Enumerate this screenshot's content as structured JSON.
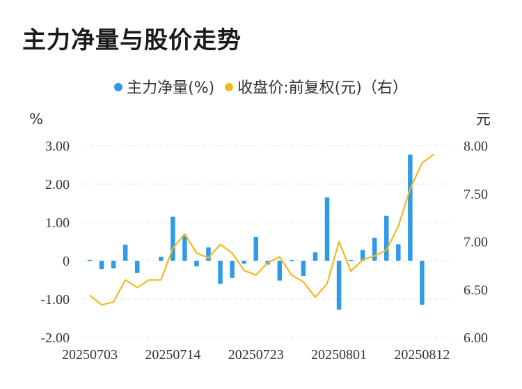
{
  "title": "主力净量与股价走势",
  "legend": {
    "left": {
      "label": "主力净量(%)",
      "color": "#2f9ae8"
    },
    "right": {
      "label": "收盘价:前复权(元)（右）",
      "color": "#f2b81f"
    }
  },
  "chart_data": {
    "type": "bar",
    "left_unit": "%",
    "right_unit": "元",
    "left_ylim": [
      -2,
      3
    ],
    "right_ylim": [
      6.0,
      8.0
    ],
    "left_ticks": [
      "3.00",
      "2.00",
      "1.00",
      "0",
      "-1.00",
      "-2.00"
    ],
    "right_ticks": [
      "8.00",
      "7.50",
      "7.00",
      "6.50",
      "6.00"
    ],
    "x_tick_labels": [
      "20250703",
      "20250714",
      "20250723",
      "20250801",
      "20250812"
    ],
    "x_tick_positions": [
      0,
      7,
      14,
      21,
      28
    ],
    "grid": true,
    "series": [
      {
        "name": "主力净量(%)",
        "kind": "bar",
        "axis": "left",
        "values": [
          0.02,
          -0.22,
          -0.2,
          0.42,
          -0.32,
          0.0,
          0.1,
          1.15,
          0.65,
          -0.15,
          0.35,
          -0.6,
          -0.45,
          -0.08,
          0.62,
          -0.1,
          -0.52,
          0.02,
          -0.4,
          0.22,
          1.65,
          -1.28,
          0.02,
          0.28,
          0.6,
          1.17,
          0.43,
          2.77,
          -1.15
        ]
      },
      {
        "name": "收盘价:前复权(元)（右）",
        "kind": "line",
        "axis": "right",
        "values": [
          6.44,
          6.34,
          6.37,
          6.6,
          6.52,
          6.6,
          6.6,
          6.93,
          7.08,
          6.88,
          6.83,
          6.97,
          6.88,
          6.7,
          6.65,
          6.78,
          6.84,
          6.65,
          6.58,
          6.42,
          6.56,
          7.0,
          6.69,
          6.81,
          6.85,
          6.91,
          7.16,
          7.55,
          7.82,
          7.91
        ]
      }
    ]
  }
}
